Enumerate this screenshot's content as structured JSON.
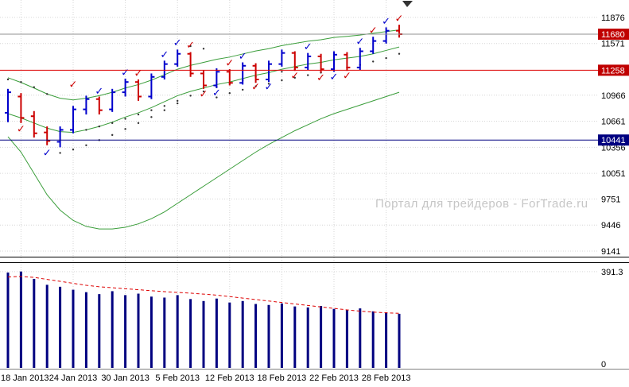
{
  "watermark": "Портал для трейдеров - ForTrade.ru",
  "colors": {
    "up_bar": "#0000CC",
    "down_bar": "#CC0000",
    "band": "#3A9D3A",
    "sar": "#333333",
    "grid": "#D6D6D6",
    "volume_bar": "#000080",
    "volume_ma": "#DD0000",
    "axis_text": "#000000",
    "watermark_text": "#C6C6C6",
    "marker_text": "#FFFFFF"
  },
  "chart_data": {
    "type": "ohlc-bar",
    "title": "",
    "x_tick_labels": [
      "18 Jan 2013",
      "24 Jan 2013",
      "30 Jan 2013",
      "5 Feb 2013",
      "12 Feb 2013",
      "18 Feb 2013",
      "22 Feb 2013",
      "28 Feb 2013"
    ],
    "x_tick_bars": [
      1,
      5,
      9,
      13,
      17,
      21,
      25,
      29
    ],
    "price_ticks": [
      11876,
      11571,
      10966,
      10661,
      10356,
      10051,
      9751,
      9446,
      9141
    ],
    "ylim": [
      9085,
      12080
    ],
    "hlines": [
      {
        "price": 11680,
        "label": "11680",
        "line": "#909090",
        "bg": "#C00000"
      },
      {
        "price": 11258,
        "label": "11258",
        "line": "#DD0000",
        "bg": "#C00000"
      },
      {
        "price": 10441,
        "label": "10441",
        "line": "#000080",
        "bg": "#000080"
      }
    ],
    "bars": [
      [
        10760,
        11040,
        10650,
        11000
      ],
      [
        10950,
        10990,
        10640,
        10700
      ],
      [
        10720,
        10780,
        10470,
        10520
      ],
      [
        10530,
        10600,
        10380,
        10430
      ],
      [
        10420,
        10600,
        10356,
        10560
      ],
      [
        10560,
        10840,
        10520,
        10800
      ],
      [
        10800,
        10960,
        10740,
        10920
      ],
      [
        10920,
        10950,
        10740,
        10790
      ],
      [
        10800,
        11040,
        10770,
        11000
      ],
      [
        11000,
        11160,
        10950,
        11120
      ],
      [
        11120,
        11150,
        10900,
        10950
      ],
      [
        10950,
        11220,
        10920,
        11180
      ],
      [
        11180,
        11370,
        11150,
        11330
      ],
      [
        11330,
        11500,
        11300,
        11450
      ],
      [
        11450,
        11470,
        11180,
        11220
      ],
      [
        11220,
        11260,
        11040,
        11080
      ],
      [
        11080,
        11280,
        11050,
        11240
      ],
      [
        11240,
        11270,
        11080,
        11110
      ],
      [
        11110,
        11350,
        11090,
        11310
      ],
      [
        11310,
        11340,
        11110,
        11150
      ],
      [
        11150,
        11370,
        11120,
        11330
      ],
      [
        11330,
        11500,
        11300,
        11460
      ],
      [
        11460,
        11480,
        11250,
        11290
      ],
      [
        11290,
        11460,
        11260,
        11420
      ],
      [
        11420,
        11450,
        11230,
        11270
      ],
      [
        11270,
        11480,
        11240,
        11440
      ],
      [
        11440,
        11470,
        11250,
        11290
      ],
      [
        11290,
        11520,
        11260,
        11480
      ],
      [
        11480,
        11650,
        11450,
        11600
      ],
      [
        11600,
        11760,
        11570,
        11720
      ],
      [
        11720,
        11790,
        11640,
        11680
      ]
    ],
    "bands": {
      "upper": [
        11170,
        11115,
        11050,
        10980,
        10930,
        10910,
        10930,
        10960,
        11000,
        11050,
        11090,
        11142,
        11205,
        11270,
        11315,
        11350,
        11386,
        11412,
        11448,
        11484,
        11510,
        11546,
        11572,
        11598,
        11615,
        11642,
        11655,
        11670,
        11690,
        11710,
        11730
      ],
      "middle": [
        10750,
        10700,
        10640,
        10580,
        10540,
        10530,
        10560,
        10600,
        10650,
        10710,
        10760,
        10820,
        10890,
        10960,
        11010,
        11050,
        11090,
        11120,
        11160,
        11200,
        11230,
        11270,
        11300,
        11330,
        11350,
        11380,
        11400,
        11420,
        11450,
        11490,
        11530
      ],
      "lower": [
        10480,
        10300,
        10050,
        9800,
        9620,
        9500,
        9430,
        9400,
        9400,
        9420,
        9460,
        9520,
        9600,
        9700,
        9800,
        9900,
        10000,
        10100,
        10200,
        10300,
        10390,
        10470,
        10550,
        10620,
        10690,
        10750,
        10800,
        10850,
        10900,
        10950,
        11000
      ]
    },
    "sar_dots": [
      [
        0,
        11150
      ],
      [
        1,
        11120
      ],
      [
        2,
        11060
      ],
      [
        3,
        10980
      ],
      [
        4,
        10290
      ],
      [
        5,
        10330
      ],
      [
        6,
        10380
      ],
      [
        7,
        10440
      ],
      [
        8,
        10500
      ],
      [
        9,
        10570
      ],
      [
        10,
        10640
      ],
      [
        11,
        10710
      ],
      [
        12,
        10790
      ],
      [
        13,
        10870
      ],
      [
        14,
        11540
      ],
      [
        15,
        11510
      ],
      [
        16,
        10940
      ],
      [
        17,
        10990
      ],
      [
        18,
        11030
      ],
      [
        19,
        11070
      ],
      [
        20,
        11100
      ],
      [
        21,
        11140
      ],
      [
        22,
        11170
      ],
      [
        23,
        11200
      ],
      [
        24,
        11230
      ],
      [
        25,
        11260
      ],
      [
        26,
        11290
      ],
      [
        27,
        11320
      ],
      [
        28,
        11360
      ],
      [
        29,
        11400
      ],
      [
        30,
        11450
      ],
      [
        6,
        10560
      ],
      [
        7,
        10600
      ],
      [
        8,
        10640
      ],
      [
        9,
        10690
      ],
      [
        10,
        10740
      ],
      [
        11,
        10790
      ],
      [
        12,
        10840
      ],
      [
        13,
        10900
      ],
      [
        14,
        10960
      ],
      [
        15,
        11010
      ],
      [
        16,
        11060
      ],
      [
        17,
        11100
      ],
      [
        18,
        11140
      ],
      [
        19,
        11180
      ],
      [
        20,
        11210
      ],
      [
        21,
        11240
      ],
      [
        22,
        11270
      ]
    ],
    "signals": [
      [
        3,
        10290,
        "buy"
      ],
      [
        7,
        11010,
        "buy"
      ],
      [
        9,
        11230,
        "buy"
      ],
      [
        12,
        11440,
        "buy"
      ],
      [
        13,
        11580,
        "buy"
      ],
      [
        16,
        10990,
        "buy"
      ],
      [
        18,
        11420,
        "buy"
      ],
      [
        20,
        11060,
        "buy"
      ],
      [
        23,
        11530,
        "buy"
      ],
      [
        25,
        11180,
        "buy"
      ],
      [
        27,
        11590,
        "buy"
      ],
      [
        29,
        11830,
        "buy"
      ],
      [
        1,
        10570,
        "sell"
      ],
      [
        5,
        11090,
        "sell"
      ],
      [
        10,
        11220,
        "sell"
      ],
      [
        14,
        11550,
        "sell"
      ],
      [
        15,
        10980,
        "sell"
      ],
      [
        17,
        11340,
        "sell"
      ],
      [
        19,
        11060,
        "sell"
      ],
      [
        22,
        11190,
        "sell"
      ],
      [
        24,
        11170,
        "sell"
      ],
      [
        26,
        11190,
        "sell"
      ],
      [
        28,
        11720,
        "sell"
      ],
      [
        30,
        11860,
        "sell"
      ]
    ],
    "volume": {
      "ylim": [
        0,
        420
      ],
      "gridline": 391.3,
      "gridline_label": "391.3",
      "zero_label": "0",
      "values": [
        388,
        392,
        362,
        338,
        330,
        318,
        308,
        300,
        312,
        296,
        302,
        290,
        286,
        296,
        280,
        272,
        282,
        266,
        272,
        260,
        256,
        262,
        250,
        246,
        252,
        240,
        236,
        242,
        230,
        226,
        220
      ],
      "ma": [
        370,
        372,
        368,
        360,
        352,
        344,
        336,
        330,
        326,
        322,
        318,
        314,
        310,
        307,
        304,
        300,
        296,
        290,
        284,
        278,
        272,
        266,
        260,
        254,
        248,
        242,
        236,
        231,
        227,
        224,
        222
      ]
    }
  }
}
